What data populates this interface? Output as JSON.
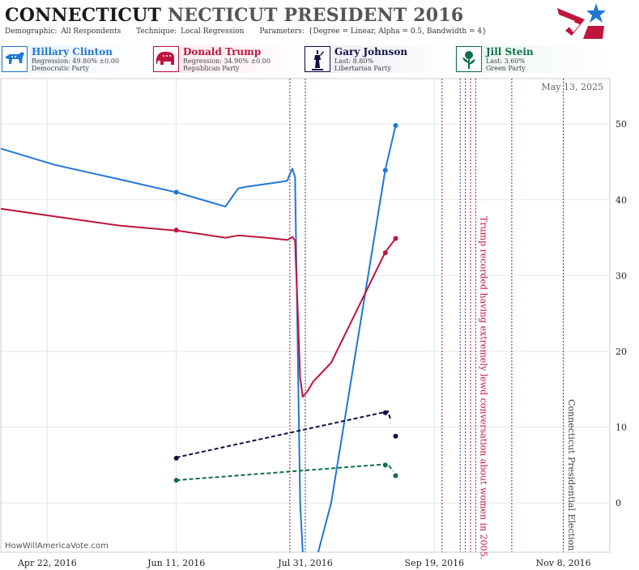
{
  "header": {
    "title_state": "CONNECTICUT",
    "title_rest": "NECTICUT PRESIDENT 2016",
    "demographic_label": "Demographic:",
    "demographic_value": "All Respondents",
    "technique_label": "Technique:",
    "technique_value": "Local Regression",
    "parameters_label": "Parameters:",
    "parameters_value": "{Degree = Linear, Alpha = 0.5, Bandwidth = 4}"
  },
  "candidates": [
    {
      "name": "Hillary Clinton",
      "line1": "Regression: 49.80% ±0.00",
      "line2": "Democratic Party",
      "color": "#1f77d6",
      "bg": "#e8f1fb",
      "icon": "donkey-icon"
    },
    {
      "name": "Donald Trump",
      "line1": "Regression: 34.90% ±0.00",
      "line2": "Republican Party",
      "color": "#c0143c",
      "bg": "#fbe8ec",
      "icon": "elephant-icon"
    },
    {
      "name": "Gary Johnson",
      "line1": "Last: 8.80%",
      "line2": "Libertarian Party",
      "color": "#101045",
      "bg": "#ebebf3",
      "icon": "statue-of-liberty-icon"
    },
    {
      "name": "Jill Stein",
      "line1": "Last: 3.60%",
      "line2": "Green Party",
      "color": "#0f6e45",
      "bg": "#e8f4ee",
      "icon": "rose-icon"
    }
  ],
  "watermark": "HowWillAmericaVote.com",
  "chart_data": {
    "type": "line",
    "date_label": "May 13, 2025",
    "x_ticks": [
      "2016-04-22",
      "2016-06-11",
      "2016-07-31",
      "2016-09-19",
      "2016-11-08"
    ],
    "x_tick_labels": [
      "Apr 22, 2016",
      "Jun 11, 2016",
      "Jul 31, 2016",
      "Sep 19, 2016",
      "Nov 8, 2016"
    ],
    "xlim": [
      "2016-04-04",
      "2016-11-26"
    ],
    "ylim": [
      -6.5,
      56
    ],
    "y_ticks": [
      0,
      10,
      20,
      30,
      40,
      50
    ],
    "grid": true,
    "series": [
      {
        "name": "Hillary Clinton",
        "color": "#1f77d6",
        "dashed": false,
        "line": [
          [
            "2016-03-19",
            48.4
          ],
          [
            "2016-04-25",
            44.6
          ],
          [
            "2016-05-20",
            42.7
          ],
          [
            "2016-06-12",
            40.9
          ],
          [
            "2016-06-25",
            39.6
          ],
          [
            "2016-06-30",
            39.1
          ],
          [
            "2016-07-05",
            41.5
          ],
          [
            "2016-07-08",
            41.7
          ],
          [
            "2016-07-18",
            42.2
          ],
          [
            "2016-07-24",
            42.5
          ],
          [
            "2016-07-25",
            43.4
          ],
          [
            "2016-07-26",
            44.1
          ],
          [
            "2016-07-27",
            43.0
          ],
          [
            "2016-07-28",
            22.0
          ],
          [
            "2016-07-29",
            0.0
          ],
          [
            "2016-07-30",
            -6.5
          ]
        ],
        "line2": [
          [
            "2016-08-05",
            -6.5
          ],
          [
            "2016-08-10",
            0.0
          ],
          [
            "2016-08-31",
            44.0
          ],
          [
            "2016-09-04",
            49.8
          ]
        ],
        "points": [
          [
            "2016-03-19",
            48.3
          ],
          [
            "2016-06-11",
            41.0
          ],
          [
            "2016-08-31",
            43.9
          ],
          [
            "2016-09-04",
            49.8
          ]
        ]
      },
      {
        "name": "Donald Trump",
        "color": "#c0143c",
        "dashed": false,
        "line": [
          [
            "2016-03-19",
            39.6
          ],
          [
            "2016-04-25",
            37.8
          ],
          [
            "2016-05-20",
            36.6
          ],
          [
            "2016-06-12",
            35.9
          ],
          [
            "2016-06-30",
            35.0
          ],
          [
            "2016-07-05",
            35.3
          ],
          [
            "2016-07-16",
            35.0
          ],
          [
            "2016-07-24",
            34.7
          ],
          [
            "2016-07-26",
            35.1
          ],
          [
            "2016-07-27",
            34.6
          ],
          [
            "2016-07-28",
            26.0
          ],
          [
            "2016-07-29",
            16.5
          ],
          [
            "2016-07-30",
            14.0
          ],
          [
            "2016-08-01",
            14.8
          ],
          [
            "2016-08-03",
            16.0
          ],
          [
            "2016-08-10",
            18.5
          ],
          [
            "2016-08-31",
            33.1
          ],
          [
            "2016-09-04",
            34.9
          ]
        ],
        "points": [
          [
            "2016-03-19",
            39.6
          ],
          [
            "2016-06-11",
            36.0
          ],
          [
            "2016-08-31",
            33.0
          ],
          [
            "2016-09-04",
            34.9
          ]
        ]
      },
      {
        "name": "Gary Johnson",
        "color": "#101045",
        "dashed": true,
        "line": [
          [
            "2016-06-11",
            6.0
          ],
          [
            "2016-08-31",
            12.0
          ],
          [
            "2016-09-01",
            12.1
          ],
          [
            "2016-09-02",
            11.0
          ]
        ],
        "points": [
          [
            "2016-06-11",
            5.9
          ],
          [
            "2016-08-31",
            11.9
          ],
          [
            "2016-09-04",
            8.8
          ]
        ]
      },
      {
        "name": "Jill Stein",
        "color": "#0f6e45",
        "dashed": true,
        "line": [
          [
            "2016-06-11",
            3.0
          ],
          [
            "2016-08-31",
            5.1
          ],
          [
            "2016-09-01",
            5.1
          ],
          [
            "2016-09-03",
            4.2
          ]
        ],
        "points": [
          [
            "2016-06-11",
            3.0
          ],
          [
            "2016-08-31",
            5.0
          ],
          [
            "2016-09-04",
            3.6
          ]
        ]
      }
    ],
    "event_lines": [
      {
        "date": "2016-07-25",
        "color": "#8a1a4a"
      },
      {
        "date": "2016-07-31",
        "color": "#1a4a8a"
      },
      {
        "date": "2016-09-22",
        "color": "#8a1a4a"
      },
      {
        "date": "2016-09-29",
        "color": "#1a4a8a"
      },
      {
        "date": "2016-10-01",
        "color": "#8a1a4a"
      },
      {
        "date": "2016-10-03",
        "color": "#c0143c"
      },
      {
        "date": "2016-10-05",
        "color": "#8a1a4a"
      },
      {
        "date": "2016-10-19",
        "color": "#8a1a4a"
      },
      {
        "date": "2016-11-08",
        "color": "#444444"
      }
    ],
    "annotations": [
      {
        "text": "Trump recorded having extremely lewd conversation about women in 2005.",
        "date": "2016-10-07",
        "color": "#c0143c"
      },
      {
        "text": "Connecticut Presidential Election",
        "date": "2016-11-10",
        "color": "#444444"
      }
    ]
  }
}
